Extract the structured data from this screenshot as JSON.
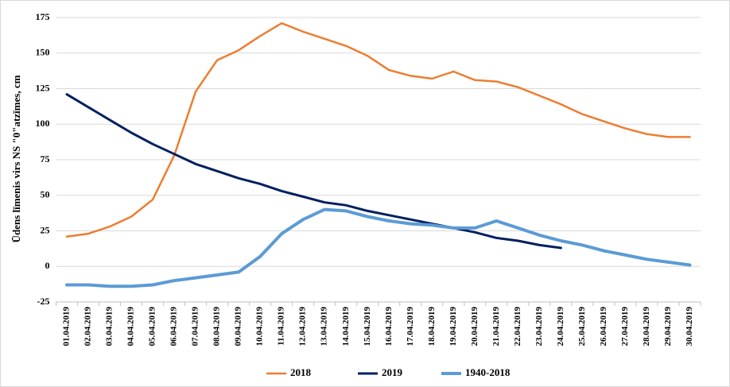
{
  "chart_data": {
    "type": "line",
    "ylabel": "Ūdens līmenis virs NS \"0\"atzīmes, cm",
    "categories": [
      "01.04.2019",
      "02.04.2019",
      "03.04.2019",
      "04.04.2019",
      "05.04.2019",
      "06.04.2019",
      "07.04.2019",
      "08.04.2019",
      "09.04.2019",
      "10.04.2019",
      "11.04.2019",
      "12.04.2019",
      "13.04.2019",
      "14.04.2019",
      "15.04.2019",
      "16.04.2019",
      "17.04.2019",
      "18.04.2019",
      "19.04.2019",
      "20.04.2019",
      "21.04.2019",
      "22.04.2019",
      "23.04.2019",
      "24.04.2019",
      "25.04.2019",
      "26.04.2019",
      "27.04.2019",
      "28.04.2019",
      "29.04.2019",
      "30.04.2019"
    ],
    "series": [
      {
        "name": "2018",
        "color": "#ed7d31",
        "width": 2.5,
        "values": [
          21,
          23,
          28,
          35,
          47,
          78,
          123,
          145,
          152,
          162,
          171,
          165,
          160,
          155,
          148,
          138,
          134,
          132,
          137,
          131,
          130,
          126,
          120,
          114,
          107,
          102,
          97,
          93,
          91,
          91
        ]
      },
      {
        "name": "2019",
        "color": "#002060",
        "width": 3,
        "values": [
          121,
          112,
          103,
          94,
          86,
          79,
          72,
          67,
          62,
          58,
          53,
          49,
          45,
          43,
          39,
          36,
          33,
          30,
          27,
          24,
          20,
          18,
          15,
          13,
          null,
          null,
          null,
          null,
          null,
          null
        ]
      },
      {
        "name": "1940-2018",
        "color": "#5b9bd5",
        "width": 4,
        "values": [
          -13,
          -13,
          -14,
          -14,
          -13,
          -10,
          -8,
          -6,
          -4,
          7,
          23,
          33,
          40,
          39,
          35,
          32,
          30,
          29,
          27,
          27,
          32,
          27,
          22,
          18,
          15,
          11,
          8,
          5,
          3,
          1
        ]
      }
    ],
    "ylim": [
      -25,
      175
    ],
    "yticks": [
      -25,
      0,
      25,
      50,
      75,
      100,
      125,
      150,
      175
    ],
    "grid": true,
    "legend": "bottom"
  }
}
